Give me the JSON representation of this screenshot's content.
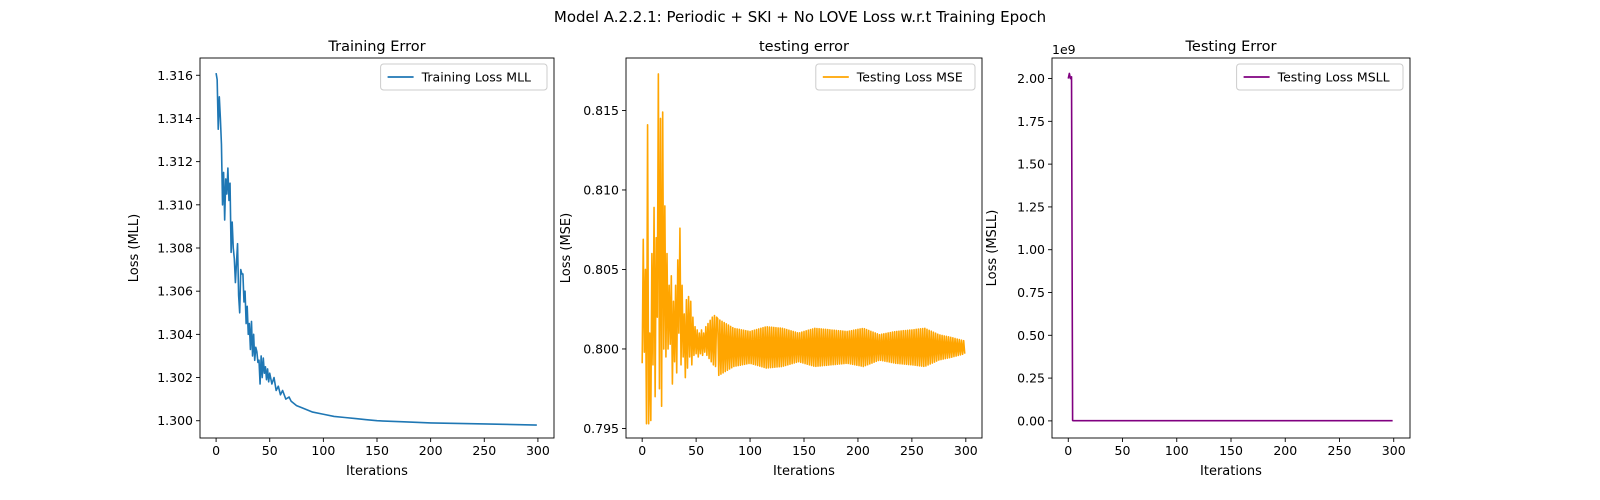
{
  "figure": {
    "suptitle": "Model A.2.2.1: Periodic + SKI + No LOVE Loss w.r.t Training Epoch"
  },
  "chart_data": [
    {
      "type": "line",
      "title": "Training Error",
      "xlabel": "Iterations",
      "ylabel": "Loss (MLL)",
      "xlim": [
        -15,
        315
      ],
      "ylim": [
        1.2992,
        1.3168
      ],
      "xticks": [
        0,
        50,
        100,
        150,
        200,
        250,
        300
      ],
      "yticks": [
        1.3,
        1.302,
        1.304,
        1.306,
        1.308,
        1.31,
        1.312,
        1.314,
        1.316
      ],
      "ytick_labels": [
        "1.300",
        "1.302",
        "1.304",
        "1.306",
        "1.308",
        "1.310",
        "1.312",
        "1.314",
        "1.316"
      ],
      "offset_label": "",
      "legend": "upper right",
      "series": [
        {
          "name": "Training Loss MLL",
          "color": "#1f77b4",
          "points": [
            [
              0,
              1.3161
            ],
            [
              1,
              1.3158
            ],
            [
              2,
              1.3135
            ],
            [
              3,
              1.315
            ],
            [
              4,
              1.314
            ],
            [
              5,
              1.3128
            ],
            [
              6,
              1.31
            ],
            [
              7,
              1.3115
            ],
            [
              8,
              1.3093
            ],
            [
              9,
              1.3112
            ],
            [
              10,
              1.3105
            ],
            [
              11,
              1.3117
            ],
            [
              12,
              1.3102
            ],
            [
              13,
              1.311
            ],
            [
              14,
              1.3078
            ],
            [
              15,
              1.3092
            ],
            [
              16,
              1.308
            ],
            [
              17,
              1.3075
            ],
            [
              18,
              1.3064
            ],
            [
              19,
              1.3073
            ],
            [
              20,
              1.3082
            ],
            [
              21,
              1.3058
            ],
            [
              22,
              1.305
            ],
            [
              23,
              1.307
            ],
            [
              24,
              1.3068
            ],
            [
              25,
              1.3068
            ],
            [
              26,
              1.3055
            ],
            [
              27,
              1.306
            ],
            [
              28,
              1.3045
            ],
            [
              29,
              1.3053
            ],
            [
              30,
              1.304
            ],
            [
              31,
              1.3045
            ],
            [
              32,
              1.3033
            ],
            [
              33,
              1.3046
            ],
            [
              34,
              1.303
            ],
            [
              35,
              1.304
            ],
            [
              36,
              1.3028
            ],
            [
              37,
              1.3034
            ],
            [
              38,
              1.3032
            ],
            [
              39,
              1.3027
            ],
            [
              40,
              1.3028
            ],
            [
              41,
              1.3017
            ],
            [
              42,
              1.303
            ],
            [
              43,
              1.302
            ],
            [
              44,
              1.3029
            ],
            [
              45,
              1.3022
            ],
            [
              46,
              1.3025
            ],
            [
              47,
              1.3019
            ],
            [
              48,
              1.3024
            ],
            [
              49,
              1.3018
            ],
            [
              50,
              1.3022
            ],
            [
              52,
              1.3017
            ],
            [
              54,
              1.302
            ],
            [
              56,
              1.3014
            ],
            [
              58,
              1.3016
            ],
            [
              60,
              1.3012
            ],
            [
              62,
              1.3014
            ],
            [
              65,
              1.301
            ],
            [
              68,
              1.3011
            ],
            [
              70,
              1.3009
            ],
            [
              75,
              1.3007
            ],
            [
              80,
              1.3006
            ],
            [
              90,
              1.3004
            ],
            [
              100,
              1.3003
            ],
            [
              110,
              1.3002
            ],
            [
              120,
              1.30015
            ],
            [
              130,
              1.3001
            ],
            [
              140,
              1.30005
            ],
            [
              150,
              1.3
            ],
            [
              175,
              1.29995
            ],
            [
              200,
              1.2999
            ],
            [
              250,
              1.29985
            ],
            [
              299,
              1.2998
            ]
          ]
        }
      ]
    },
    {
      "type": "line",
      "title": "testing error",
      "xlabel": "Iterations",
      "ylabel": "Loss (MSE)",
      "xlim": [
        -15,
        315
      ],
      "ylim": [
        0.7944,
        0.8183
      ],
      "xticks": [
        0,
        50,
        100,
        150,
        200,
        250,
        300
      ],
      "yticks": [
        0.795,
        0.8,
        0.805,
        0.81,
        0.815
      ],
      "ytick_labels": [
        "0.795",
        "0.800",
        "0.805",
        "0.810",
        "0.815"
      ],
      "offset_label": "",
      "legend": "upper right",
      "series": [
        {
          "name": "Testing Loss MSE",
          "color": "#ffa500",
          "points": [
            [
              0,
              0.7991
            ],
            [
              1,
              0.8069
            ],
            [
              2,
              0.7998
            ],
            [
              3,
              0.805
            ],
            [
              4,
              0.7953
            ],
            [
              5,
              0.8141
            ],
            [
              6,
              0.7953
            ],
            [
              7,
              0.801
            ],
            [
              8,
              0.7955
            ],
            [
              9,
              0.806
            ],
            [
              10,
              0.799
            ],
            [
              11,
              0.8089
            ],
            [
              12,
              0.797
            ],
            [
              13,
              0.807
            ],
            [
              14,
              0.802
            ],
            [
              15,
              0.8173
            ],
            [
              16,
              0.7975
            ],
            [
              17,
              0.8145
            ],
            [
              18,
              0.7964
            ],
            [
              19,
              0.8149
            ],
            [
              20,
              0.8
            ],
            [
              21,
              0.809
            ],
            [
              22,
              0.7995
            ],
            [
              23,
              0.806
            ],
            [
              24,
              0.8
            ],
            [
              25,
              0.804
            ],
            [
              26,
              0.8003
            ],
            [
              27,
              0.8046
            ],
            [
              28,
              0.7978
            ],
            [
              29,
              0.803
            ],
            [
              30,
              0.7992
            ],
            [
              31,
              0.804
            ],
            [
              32,
              0.7985
            ],
            [
              33,
              0.8056
            ],
            [
              34,
              0.801
            ],
            [
              35,
              0.8076
            ],
            [
              36,
              0.799
            ],
            [
              37,
              0.804
            ],
            [
              38,
              0.7995
            ],
            [
              39,
              0.8022
            ],
            [
              40,
              0.7982
            ],
            [
              41,
              0.8031
            ],
            [
              42,
              0.7988
            ],
            [
              43,
              0.8033
            ],
            [
              44,
              0.7995
            ],
            [
              45,
              0.803
            ],
            [
              46,
              0.799
            ],
            [
              47,
              0.802
            ],
            [
              48,
              0.7996
            ],
            [
              49,
              0.8014
            ],
            [
              50,
              0.7997
            ],
            [
              51,
              0.8012
            ],
            [
              52,
              0.7995
            ],
            [
              53,
              0.801
            ],
            [
              54,
              0.7997
            ],
            [
              55,
              0.8012
            ],
            [
              56,
              0.7996
            ],
            [
              57,
              0.801
            ],
            [
              58,
              0.7998
            ],
            [
              59,
              0.8014
            ],
            [
              60,
              0.7996
            ],
            [
              61,
              0.8016
            ],
            [
              62,
              0.7994
            ],
            [
              63,
              0.8018
            ],
            [
              64,
              0.7992
            ],
            [
              65,
              0.802
            ],
            [
              66,
              0.799
            ],
            [
              67,
              0.8021
            ],
            [
              68,
              0.7989
            ],
            [
              69,
              0.802
            ]
          ],
          "oscillation": {
            "from": 70,
            "to": 299,
            "center": 0.8001,
            "period": 2,
            "envelope": [
              [
                70,
                0.0018
              ],
              [
                85,
                0.0012
              ],
              [
                100,
                0.001
              ],
              [
                115,
                0.0013
              ],
              [
                130,
                0.0012
              ],
              [
                145,
                0.0009
              ],
              [
                160,
                0.0012
              ],
              [
                175,
                0.0011
              ],
              [
                190,
                0.001
              ],
              [
                205,
                0.0012
              ],
              [
                220,
                0.0008
              ],
              [
                235,
                0.001
              ],
              [
                250,
                0.0011
              ],
              [
                262,
                0.0012
              ],
              [
                275,
                0.0008
              ],
              [
                288,
                0.0006
              ],
              [
                299,
                0.0004
              ]
            ]
          }
        }
      ]
    },
    {
      "type": "line",
      "title": "Testing Error",
      "xlabel": "Iterations",
      "ylabel": "Loss (MSLL)",
      "xlim": [
        -15,
        315
      ],
      "ylim": [
        -100000000.0,
        2120000000.0
      ],
      "xticks": [
        0,
        50,
        100,
        150,
        200,
        250,
        300
      ],
      "yticks": [
        0,
        250000000.0,
        500000000.0,
        750000000.0,
        1000000000.0,
        1250000000.0,
        1500000000.0,
        1750000000.0,
        2000000000.0
      ],
      "ytick_labels": [
        "0.00",
        "0.25",
        "0.50",
        "0.75",
        "1.00",
        "1.25",
        "1.50",
        "1.75",
        "2.00"
      ],
      "offset_label": "1e9",
      "legend": "upper right",
      "series": [
        {
          "name": "Testing Loss MSLL",
          "color": "#800080",
          "points": [
            [
              0,
              2000000000.0
            ],
            [
              1,
              2030000000.0
            ],
            [
              2,
              2000000000.0
            ],
            [
              3,
              2010000000.0
            ],
            [
              4,
              2000000.0
            ],
            [
              5,
              1000000.0
            ],
            [
              10,
              1000000.0
            ],
            [
              50,
              1000000.0
            ],
            [
              100,
              1000000.0
            ],
            [
              150,
              1000000.0
            ],
            [
              200,
              1000000.0
            ],
            [
              250,
              1000000.0
            ],
            [
              299,
              1000000.0
            ]
          ]
        }
      ]
    }
  ]
}
